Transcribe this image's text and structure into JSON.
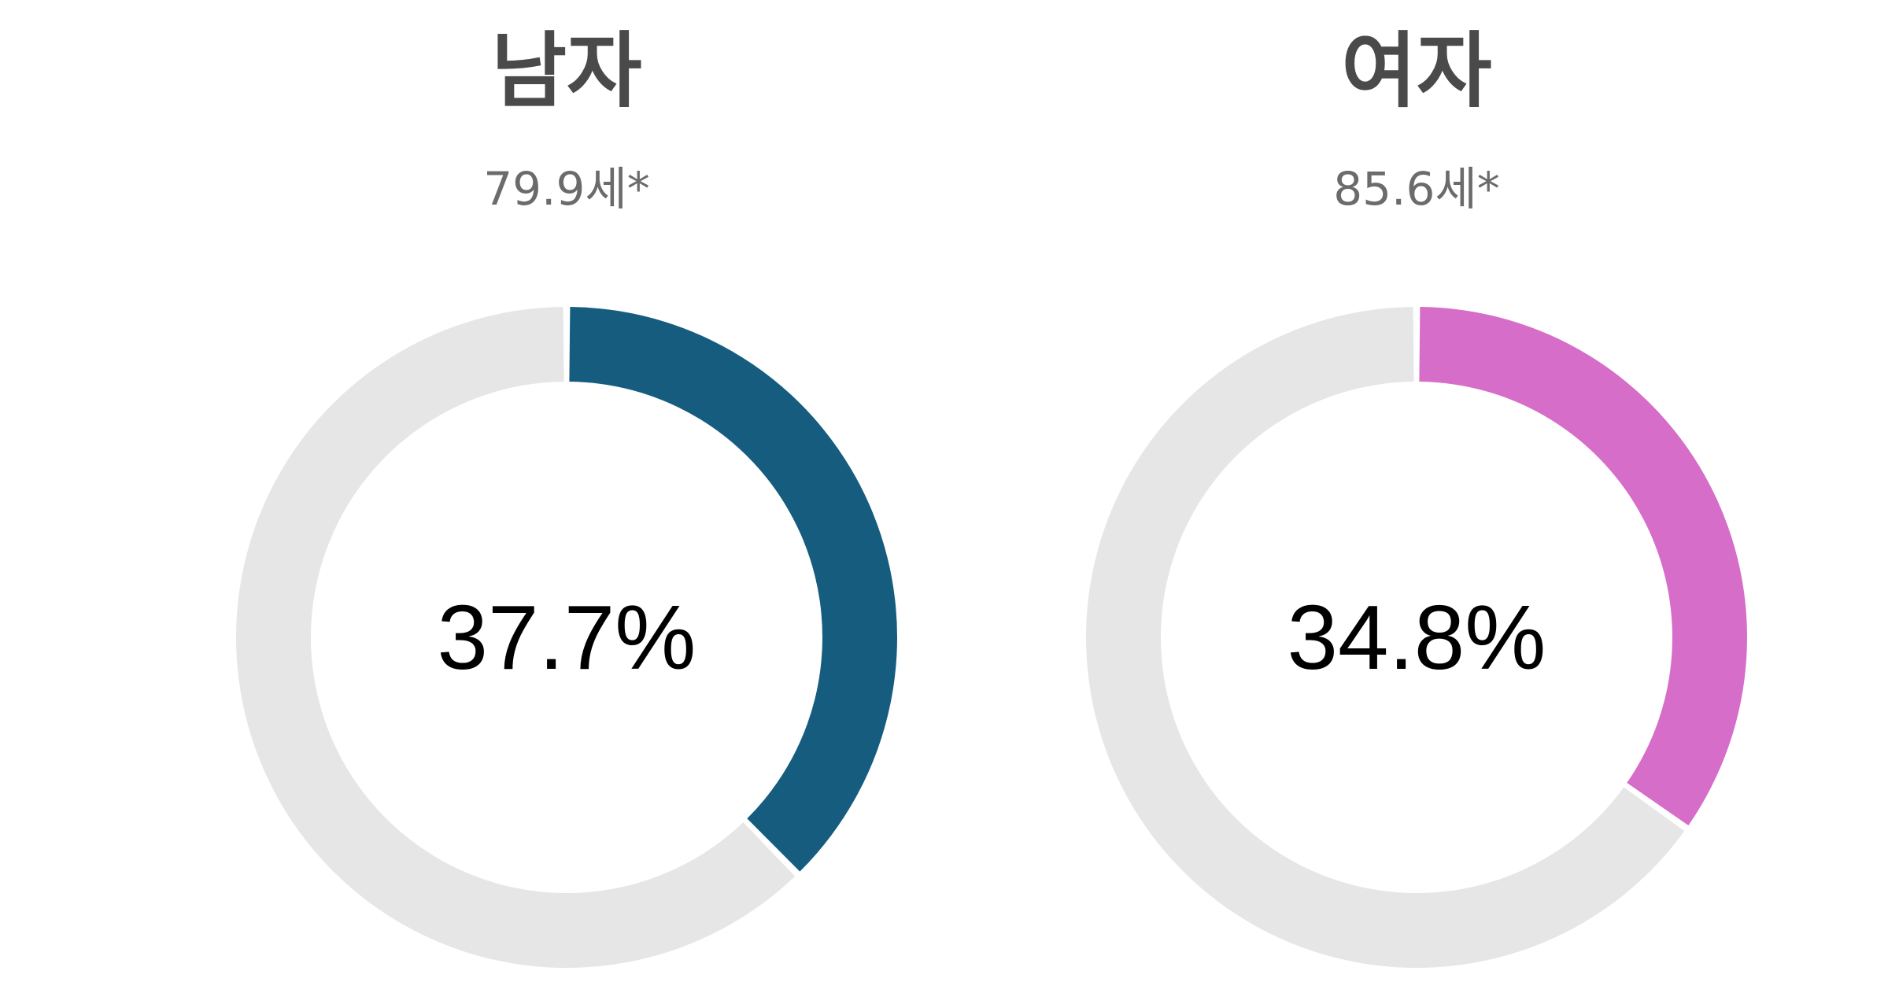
{
  "chart_data": [
    {
      "type": "pie",
      "title": "남자",
      "subtitle": "79.9세*",
      "value_percent": 37.7,
      "value_label": "37.7%",
      "colors": {
        "value": "#155c7f",
        "remainder": "#e6e6e6"
      }
    },
    {
      "type": "pie",
      "title": "여자",
      "subtitle": "85.6세*",
      "value_percent": 34.8,
      "value_label": "34.8%",
      "colors": {
        "value": "#d56dc9",
        "remainder": "#e6e6e6"
      }
    }
  ]
}
